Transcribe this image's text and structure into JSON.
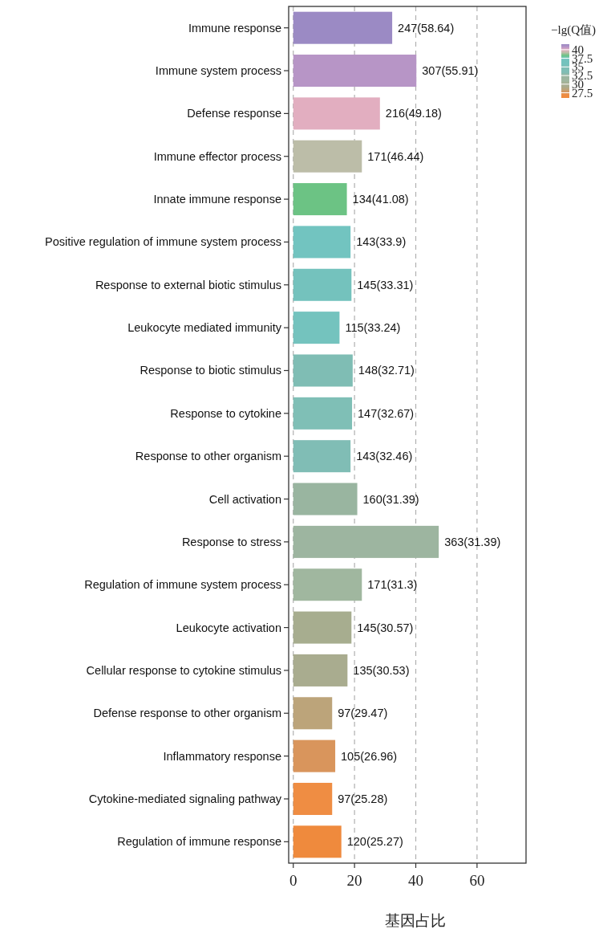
{
  "chart_data": {
    "type": "bar",
    "orientation": "horizontal",
    "xlabel": "基因占比",
    "clabel": "−lg(Q值)",
    "categories": [
      "Immune response",
      "Immune system process",
      "Defense response",
      "Immune effector process",
      "Innate immune response",
      "Positive regulation of immune system process",
      "Response to external biotic stimulus",
      "Leukocyte mediated immunity",
      "Response to biotic stimulus",
      "Response to cytokine",
      "Response to other organism",
      "Cell activation",
      "Response to stress",
      "Regulation of immune system process",
      "Leukocyte activation",
      "Cellular response to cytokine stimulus",
      "Defense response to other organism",
      "Inflammatory response",
      "Cytokine-mediated signaling pathway",
      "Regulation of immune response"
    ],
    "values": [
      32.3,
      40.2,
      28.3,
      22.4,
      17.5,
      18.7,
      19.0,
      15.1,
      19.4,
      19.2,
      18.7,
      20.9,
      47.5,
      22.4,
      19.0,
      17.7,
      12.7,
      13.7,
      12.7,
      15.7
    ],
    "annotations": [
      {
        "text": "247(58.64)",
        "x": 32.3,
        "y": "Immune response"
      },
      {
        "text": "307(55.91)",
        "x": 40.2,
        "y": "Immune system process"
      },
      {
        "text": "216(49.18)",
        "x": 28.3,
        "y": "Defense response"
      },
      {
        "text": "171(46.44)",
        "x": 22.4,
        "y": "Immune effector process"
      },
      {
        "text": "134(41.08)",
        "x": 17.5,
        "y": "Innate immune response"
      },
      {
        "text": "143(33.9)",
        "x": 18.7,
        "y": "Positive regulation of immune system process"
      },
      {
        "text": "145(33.31)",
        "x": 19.0,
        "y": "Response to external biotic stimulus"
      },
      {
        "text": "115(33.24)",
        "x": 15.1,
        "y": "Leukocyte mediated immunity"
      },
      {
        "text": "148(32.71)",
        "x": 19.4,
        "y": "Response to biotic stimulus"
      },
      {
        "text": "147(32.67)",
        "x": 19.2,
        "y": "Response to cytokine"
      },
      {
        "text": "143(32.46)",
        "x": 18.7,
        "y": "Response to other organism"
      },
      {
        "text": "160(31.39)",
        "x": 20.9,
        "y": "Cell activation"
      },
      {
        "text": "363(31.39)",
        "x": 47.5,
        "y": "Response to stress"
      },
      {
        "text": "171(31.3)",
        "x": 22.4,
        "y": "Regulation of immune system process"
      },
      {
        "text": "145(30.57)",
        "x": 19.0,
        "y": "Leukocyte activation"
      },
      {
        "text": "135(30.53)",
        "x": 17.7,
        "y": "Cellular response to cytokine stimulus"
      },
      {
        "text": "97(29.47)",
        "x": 12.7,
        "y": "Defense response to other organism"
      },
      {
        "text": "105(26.96)",
        "x": 13.7,
        "y": "Inflammatory response"
      },
      {
        "text": "97(25.28)",
        "x": 12.7,
        "y": "Cytokine-mediated signaling pathway"
      },
      {
        "text": "120(25.27)",
        "x": 15.7,
        "y": "Regulation of immune response"
      }
    ],
    "colors": [
      "#9b8ac4",
      "#b795c6",
      "#e2aec0",
      "#bcbda8",
      "#6cc384",
      "#72c4c0",
      "#74c2bd",
      "#74c3be",
      "#7fbdb4",
      "#7fbfb6",
      "#80bdb5",
      "#99b5a0",
      "#9db5a0",
      "#a0b79f",
      "#a7ad8f",
      "#a9ac8f",
      "#bca47a",
      "#d9955c",
      "#ef8d43",
      "#ef8a3d"
    ],
    "xlim": [
      -1.5,
      76
    ],
    "xticks": [
      0,
      20,
      40,
      60
    ],
    "grid": "x",
    "clim": [
      26,
      41.6
    ],
    "cticks": [
      {
        "value": 40,
        "label": "40"
      },
      {
        "value": 37.5,
        "label": "37.5"
      },
      {
        "value": 35,
        "label": "35"
      },
      {
        "value": 32.5,
        "label": "32.5"
      },
      {
        "value": 30,
        "label": "30"
      },
      {
        "value": 27.5,
        "label": "27.5"
      }
    ]
  }
}
